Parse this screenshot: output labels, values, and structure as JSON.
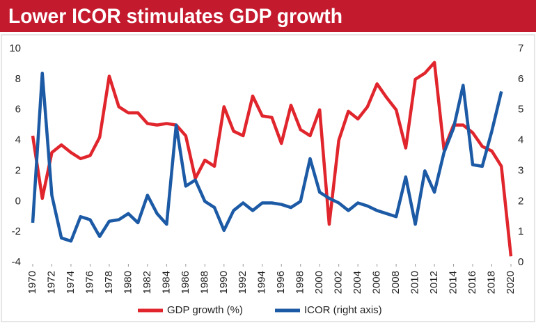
{
  "chart_data": {
    "type": "line",
    "title": "Lower ICOR stimulates GDP growth",
    "x": [
      1970,
      1971,
      1972,
      1973,
      1974,
      1975,
      1976,
      1977,
      1978,
      1979,
      1980,
      1981,
      1982,
      1983,
      1984,
      1985,
      1986,
      1987,
      1988,
      1989,
      1990,
      1991,
      1992,
      1993,
      1994,
      1995,
      1996,
      1997,
      1998,
      1999,
      2000,
      2001,
      2002,
      2003,
      2004,
      2005,
      2006,
      2007,
      2008,
      2009,
      2010,
      2011,
      2012,
      2013,
      2014,
      2015,
      2016,
      2017,
      2018,
      2019,
      2020
    ],
    "series": [
      {
        "name": "GDP growth (%)",
        "color": "#e0252c",
        "values": [
          4.3,
          0.2,
          3.2,
          3.7,
          3.2,
          2.8,
          3.0,
          4.2,
          8.2,
          6.2,
          5.8,
          5.8,
          5.1,
          5.0,
          5.1,
          5.0,
          4.3,
          1.5,
          2.7,
          2.3,
          6.2,
          4.6,
          4.3,
          6.9,
          5.6,
          5.5,
          3.8,
          6.3,
          4.7,
          4.3,
          6.0,
          -1.5,
          4.0,
          5.9,
          5.4,
          6.2,
          7.7,
          6.8,
          6.0,
          3.5,
          8.0,
          8.4,
          9.1,
          3.4,
          5.0,
          5.0,
          4.5,
          3.6,
          3.3,
          2.3,
          -3.6
        ]
      },
      {
        "name": "ICOR (right axis)",
        "color": "#1c5aa5",
        "axis": "y2",
        "values": [
          1.3,
          6.2,
          2.2,
          0.8,
          0.7,
          1.5,
          1.4,
          0.85,
          1.35,
          1.4,
          1.6,
          1.3,
          2.2,
          1.6,
          1.25,
          4.5,
          2.5,
          2.7,
          2.0,
          1.8,
          1.05,
          1.7,
          1.95,
          1.7,
          1.95,
          1.95,
          1.9,
          1.8,
          2.0,
          3.4,
          2.3,
          2.1,
          1.95,
          1.7,
          1.95,
          1.85,
          1.7,
          1.6,
          1.5,
          2.8,
          1.25,
          3.0,
          2.3,
          3.6,
          4.4,
          5.8,
          3.2,
          3.15,
          4.3,
          5.6,
          null
        ]
      }
    ],
    "xlim": [
      1970,
      2020
    ],
    "xticks": [
      1970,
      1972,
      1974,
      1976,
      1978,
      1980,
      1982,
      1984,
      1986,
      1988,
      1990,
      1992,
      1994,
      1996,
      1998,
      2000,
      2002,
      2004,
      2006,
      2008,
      2010,
      2012,
      2014,
      2016,
      2018,
      2020
    ],
    "ylim": [
      -4,
      10
    ],
    "yticks": [
      -4,
      -2,
      0,
      2,
      4,
      6,
      8,
      10
    ],
    "y2lim": [
      0,
      7
    ],
    "y2ticks": [
      0,
      1,
      2,
      3,
      4,
      5,
      6,
      7
    ],
    "legend": "bottom",
    "grid": false
  }
}
